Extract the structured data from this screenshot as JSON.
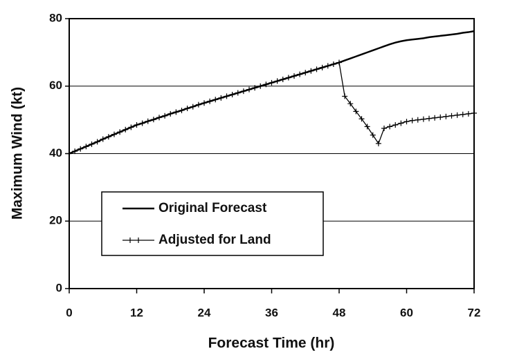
{
  "chart_data": {
    "type": "line",
    "xlabel": "Forecast Time (hr)",
    "ylabel": "Maximum Wind (kt)",
    "x": [
      0,
      1,
      2,
      3,
      4,
      5,
      6,
      7,
      8,
      9,
      10,
      11,
      12,
      13,
      14,
      15,
      16,
      17,
      18,
      19,
      20,
      21,
      22,
      23,
      24,
      25,
      26,
      27,
      28,
      29,
      30,
      31,
      32,
      33,
      34,
      35,
      36,
      37,
      38,
      39,
      40,
      41,
      42,
      43,
      44,
      45,
      46,
      47,
      48,
      49,
      50,
      51,
      52,
      53,
      54,
      55,
      56,
      57,
      58,
      59,
      60,
      61,
      62,
      63,
      64,
      65,
      66,
      67,
      68,
      69,
      70,
      71,
      72
    ],
    "series": [
      {
        "name": "Original Forecast",
        "color": "#000000",
        "marker": false,
        "values": [
          40,
          40.7,
          41.4,
          42.1,
          42.8,
          43.5,
          44.3,
          45,
          45.7,
          46.4,
          47.1,
          47.8,
          48.5,
          49,
          49.6,
          50.1,
          50.7,
          51.2,
          51.8,
          52.3,
          52.8,
          53.4,
          53.9,
          54.5,
          55,
          55.5,
          56,
          56.5,
          57,
          57.5,
          58,
          58.5,
          59,
          59.5,
          60,
          60.5,
          61,
          61.5,
          62,
          62.5,
          63,
          63.5,
          64,
          64.5,
          65,
          65.5,
          66,
          66.5,
          67,
          67.6,
          68.2,
          68.8,
          69.4,
          70,
          70.6,
          71.2,
          71.8,
          72.4,
          72.9,
          73.3,
          73.6,
          73.8,
          74,
          74.2,
          74.5,
          74.7,
          74.9,
          75.1,
          75.3,
          75.5,
          75.8,
          76,
          76.3
        ]
      },
      {
        "name": "Adjusted for Land",
        "color": "#000000",
        "marker": true,
        "values": [
          40,
          40.7,
          41.4,
          42.1,
          42.8,
          43.5,
          44.3,
          45,
          45.7,
          46.4,
          47.1,
          47.8,
          48.5,
          49,
          49.6,
          50.1,
          50.7,
          51.2,
          51.8,
          52.3,
          52.8,
          53.4,
          53.9,
          54.5,
          55,
          55.5,
          56,
          56.5,
          57,
          57.5,
          58,
          58.5,
          59,
          59.5,
          60,
          60.5,
          61,
          61.5,
          62,
          62.5,
          63,
          63.5,
          64,
          64.5,
          65,
          65.5,
          66,
          66.5,
          67,
          57,
          54.8,
          52.5,
          50.3,
          48,
          45.5,
          43,
          47.5,
          48,
          48.5,
          49,
          49.5,
          49.8,
          50,
          50.2,
          50.4,
          50.6,
          50.8,
          51,
          51.2,
          51.4,
          51.6,
          51.8,
          52
        ]
      }
    ],
    "xlim": [
      0,
      72
    ],
    "xticks": [
      0,
      12,
      24,
      36,
      48,
      60,
      72
    ],
    "ylim": [
      0,
      80
    ],
    "yticks": [
      0,
      20,
      40,
      60,
      80
    ],
    "grid": true,
    "legend": "lower left"
  }
}
